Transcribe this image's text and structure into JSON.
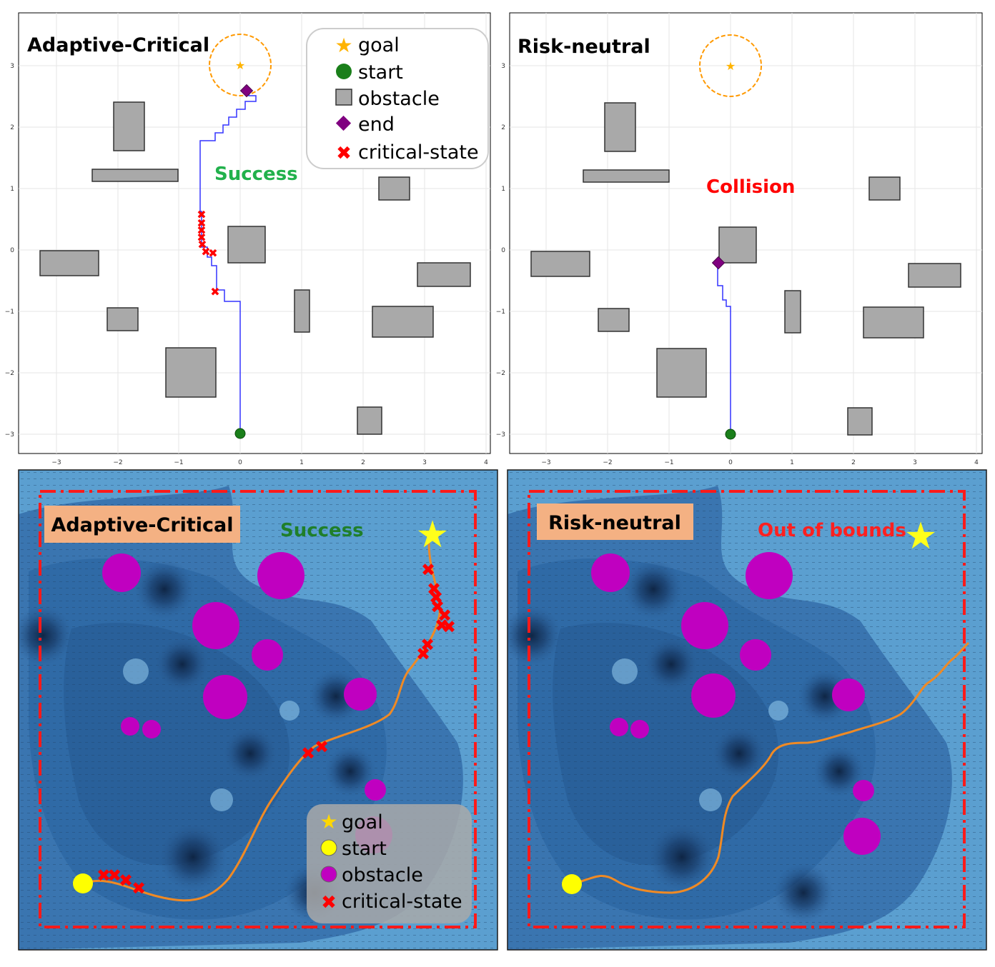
{
  "panels": {
    "top_left": {
      "title": "Adaptive-Critical",
      "status": "Success",
      "status_color": "#22b14c"
    },
    "top_right": {
      "title": "Risk-neutral",
      "status": "Collision",
      "status_color": "#ff0000"
    },
    "bottom_left": {
      "title": "Adaptive-Critical",
      "status": "Success",
      "status_color": "#1f7f2a"
    },
    "bottom_right": {
      "title": "Risk-neutral",
      "status": "Out of bounds",
      "status_color": "#ff2020"
    }
  },
  "axes": {
    "x_ticks": [
      "−3",
      "−2",
      "−1",
      "0",
      "1",
      "2",
      "3",
      "4"
    ],
    "y_ticks": [
      "3",
      "2",
      "1",
      "0",
      "−1",
      "−2",
      "−3"
    ]
  },
  "legend_top": {
    "goal": "goal",
    "start": "start",
    "obstacle": "obstacle",
    "end": "end",
    "critical": "critical-state"
  },
  "legend_bottom": {
    "goal": "goal",
    "start": "start",
    "obstacle": "obstacle",
    "critical": "critical-state"
  },
  "colors": {
    "goal": "#ffb300",
    "start": "#1a7f1a",
    "obstacle": "#a9a9a9",
    "end": "#800080",
    "critical": "#ff0000",
    "path": "#3333ff",
    "field_dark": "#2b5d94",
    "field_light": "#5b9fd0",
    "circle_obstacle": "#c000c0",
    "trajectory": "#f08a24",
    "start_bottom": "#ffff00",
    "goal_bottom": "#ffff1a",
    "boundary": "#ff1a1a",
    "title_box": "#f4b183"
  }
}
